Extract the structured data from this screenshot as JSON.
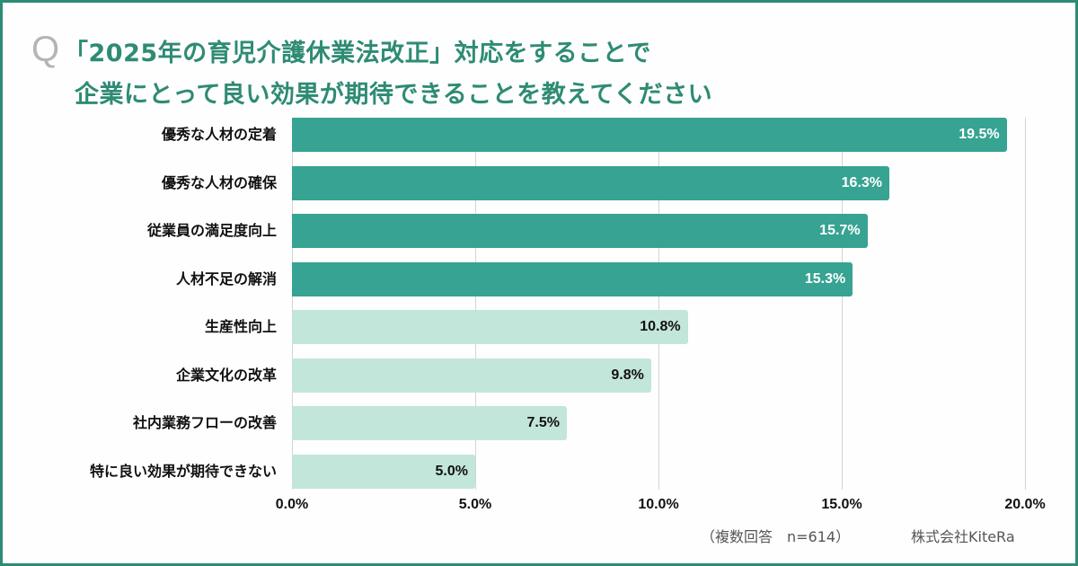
{
  "header": {
    "q_mark": "Q",
    "title_line1": "「2025年の育児介護休業法改正」対応をすることで",
    "title_line2": "企業にとって良い効果が期待できることを教えてください"
  },
  "colors": {
    "accent": "#2e8b74",
    "bar_dark": "#37a392",
    "bar_light": "#c2e6d9",
    "gridline": "#d4d4d8"
  },
  "chart_data": {
    "type": "bar",
    "orientation": "horizontal",
    "title": "「2025年の育児介護休業法改正」対応をすることで企業にとって良い効果が期待できることを教えてください",
    "categories": [
      "優秀な人材の定着",
      "優秀な人材の確保",
      "従業員の満足度向上",
      "人材不足の解消",
      "生産性向上",
      "企業文化の改革",
      "社内業務フローの改善",
      "特に良い効果が期待できない"
    ],
    "values": [
      19.5,
      16.3,
      15.7,
      15.3,
      10.8,
      9.8,
      7.5,
      5.0
    ],
    "value_labels": [
      "19.5%",
      "16.3%",
      "15.7%",
      "15.3%",
      "10.8%",
      "9.8%",
      "7.5%",
      "5.0%"
    ],
    "highlight": [
      true,
      true,
      true,
      true,
      false,
      false,
      false,
      false
    ],
    "xlabel": "",
    "ylabel": "",
    "xlim": [
      0,
      20
    ],
    "x_ticks": [
      "0.0%",
      "5.0%",
      "10.0%",
      "15.0%",
      "20.0%"
    ],
    "grid": true,
    "legend": null,
    "unit": "%"
  },
  "footer": {
    "note": "（複数回答　n=614）",
    "source": "株式会社KiteRa"
  }
}
